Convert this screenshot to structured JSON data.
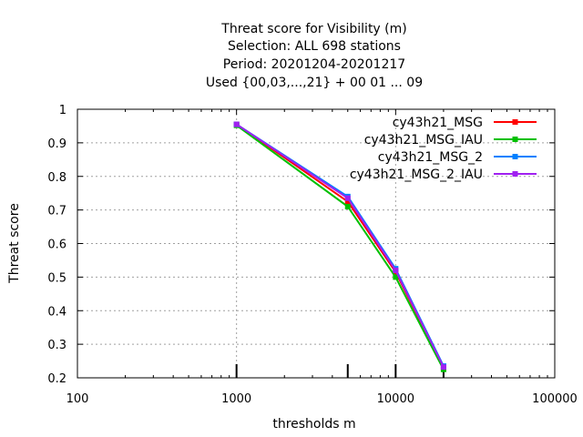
{
  "chart_data": {
    "type": "line",
    "title_lines": [
      "Threat score  for Visibility (m)",
      "Selection: ALL    698 stations",
      "Period: 20201204-20201217",
      "Used {00,03,...,21} + 00 01 ... 09"
    ],
    "xlabel": "thresholds m",
    "ylabel": "Threat score",
    "x_scale": "log",
    "xlim": [
      100,
      100000
    ],
    "ylim": [
      0.2,
      1
    ],
    "x_ticks": [
      100,
      1000,
      10000,
      100000
    ],
    "x_tick_labels": [
      "100",
      "1000",
      "10000",
      "100000"
    ],
    "y_ticks": [
      0.2,
      0.3,
      0.4,
      0.5,
      0.6,
      0.7,
      0.8,
      0.9,
      1
    ],
    "y_tick_labels": [
      "0.2",
      "0.3",
      "0.4",
      "0.5",
      "0.6",
      "0.7",
      "0.8",
      "0.9",
      "1"
    ],
    "grid": true,
    "legend_position": "top-right",
    "x": [
      1000,
      5000,
      10000,
      20000
    ],
    "series": [
      {
        "name": "cy43h21_MSG",
        "color": "#ff0000",
        "values": [
          0.955,
          0.725,
          0.515,
          0.23
        ]
      },
      {
        "name": "cy43h21_MSG_IAU",
        "color": "#00c000",
        "values": [
          0.952,
          0.71,
          0.5,
          0.225
        ]
      },
      {
        "name": "cy43h21_MSG_2",
        "color": "#0080ff",
        "values": [
          0.955,
          0.74,
          0.525,
          0.235
        ]
      },
      {
        "name": "cy43h21_MSG_2_IAU",
        "color": "#a020f0",
        "values": [
          0.955,
          0.735,
          0.52,
          0.232
        ]
      }
    ],
    "sample_size_markers_x": [
      1000,
      5000,
      10000,
      20000
    ]
  }
}
